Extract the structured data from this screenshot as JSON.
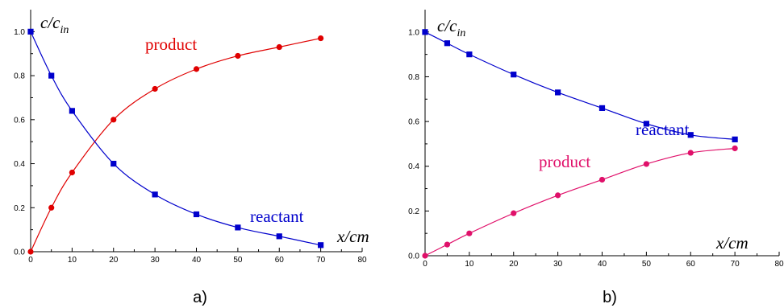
{
  "chart_data": [
    {
      "type": "line",
      "caption": "a)",
      "xlabel": "x/cm",
      "ylabel": "c/c in",
      "xlim": [
        0,
        80
      ],
      "ylim": [
        0,
        1.1
      ],
      "xticks": [
        0,
        10,
        20,
        30,
        40,
        50,
        60,
        70,
        80
      ],
      "xtick_labels": [
        "0",
        "10",
        "20",
        "30",
        "40",
        "50",
        "60",
        "70",
        "80"
      ],
      "yticks": [
        0,
        0.2,
        0.4,
        0.6,
        0.8,
        1.0
      ],
      "ytick_labels": [
        "0.0",
        "0.2",
        "0.4",
        "0.6",
        "0.8",
        "1.0"
      ],
      "x": [
        0,
        5,
        10,
        20,
        30,
        40,
        50,
        60,
        70
      ],
      "series": [
        {
          "name": "product",
          "color": "#e00000",
          "marker": "circle",
          "values": [
            0.0,
            0.2,
            0.36,
            0.6,
            0.74,
            0.83,
            0.89,
            0.93,
            0.97
          ]
        },
        {
          "name": "reactant",
          "color": "#0000cc",
          "marker": "square",
          "values": [
            1.0,
            0.8,
            0.64,
            0.4,
            0.26,
            0.17,
            0.11,
            0.07,
            0.03
          ]
        }
      ]
    },
    {
      "type": "line",
      "caption": "b)",
      "xlabel": "x/cm",
      "ylabel": "c/c in",
      "xlim": [
        0,
        80
      ],
      "ylim": [
        0,
        1.1
      ],
      "xticks": [
        0,
        10,
        20,
        30,
        40,
        50,
        60,
        70,
        80
      ],
      "xtick_labels": [
        "0",
        "10",
        "20",
        "30",
        "40",
        "50",
        "60",
        "70",
        "80"
      ],
      "yticks": [
        0,
        0.2,
        0.4,
        0.6,
        0.8,
        1.0
      ],
      "ytick_labels": [
        "0.0",
        "0.2",
        "0.4",
        "0.6",
        "0.8",
        "1.0"
      ],
      "x": [
        0,
        5,
        10,
        20,
        30,
        40,
        50,
        60,
        70
      ],
      "series": [
        {
          "name": "reactant",
          "color": "#0000cc",
          "marker": "square",
          "values": [
            1.0,
            0.95,
            0.9,
            0.81,
            0.73,
            0.66,
            0.59,
            0.54,
            0.52
          ]
        },
        {
          "name": "product",
          "color": "#e0106a",
          "marker": "circle",
          "values": [
            0.0,
            0.05,
            0.1,
            0.19,
            0.27,
            0.34,
            0.41,
            0.46,
            0.48
          ]
        }
      ]
    }
  ]
}
